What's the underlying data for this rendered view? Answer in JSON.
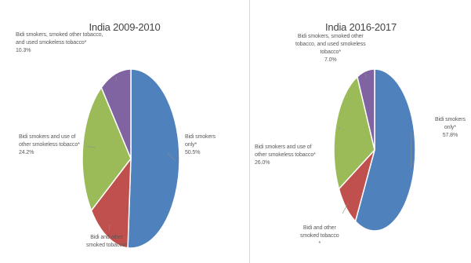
{
  "chart_data": [
    {
      "type": "pie",
      "title": "India 2009-2010",
      "start_angle_deg": 0,
      "series": [
        {
          "slices": [
            {
              "label": "Bidi smokers only*",
              "lines": [
                "Bidi smokers",
                "only*"
              ],
              "value": 50.5,
              "value_label": "50.5%",
              "color": "#4f81bd"
            },
            {
              "label": "Bidi and other smoked tobacco*",
              "lines": [
                "Bidi and other",
                "smoked tobacco*"
              ],
              "value": 14.0,
              "value_label": "",
              "color": "#c0504d"
            },
            {
              "label": "Bidi smokers and use of other smokeless tobacco*",
              "lines": [
                "Bidi smokers and use of",
                "other smokeless tobacco*"
              ],
              "value": 24.2,
              "value_label": "24.2%",
              "color": "#9bbb59"
            },
            {
              "label": "Bidi smokers, smoked other tobacco, and used smokeless tobacco*",
              "lines": [
                "Bidi smokers, smoked other tobacco,",
                "and used smokeless tobacco*"
              ],
              "value": 10.3,
              "value_label": "10.3%",
              "color": "#8064a2"
            }
          ]
        }
      ]
    },
    {
      "type": "pie",
      "title": "India 2016-2017",
      "start_angle_deg": 0,
      "series": [
        {
          "slices": [
            {
              "label": "Bidi smokers only*",
              "lines": [
                "Bidi smokers",
                "only*"
              ],
              "value": 57.8,
              "value_label": "57.8%",
              "color": "#4f81bd"
            },
            {
              "label": "Bidi and other smoked tobacco*",
              "lines": [
                "Bidi and other",
                "smoked tobacco",
                "*"
              ],
              "value": 9.2,
              "value_label": "",
              "color": "#c0504d"
            },
            {
              "label": "Bidi smokers and use of other smokeless tobacco*",
              "lines": [
                "Bidi smokers and use of",
                "other smokeless tobacco*"
              ],
              "value": 26.0,
              "value_label": "26.0%",
              "color": "#9bbb59"
            },
            {
              "label": "Bidi smokers, smoked other tobacco, and used smokeless tobacco*",
              "lines": [
                "Bidi smokers, smoked other",
                "tobacco, and used smokeless",
                "tobacco*"
              ],
              "value": 7.0,
              "value_label": "7.0%",
              "color": "#8064a2"
            }
          ]
        }
      ]
    }
  ]
}
